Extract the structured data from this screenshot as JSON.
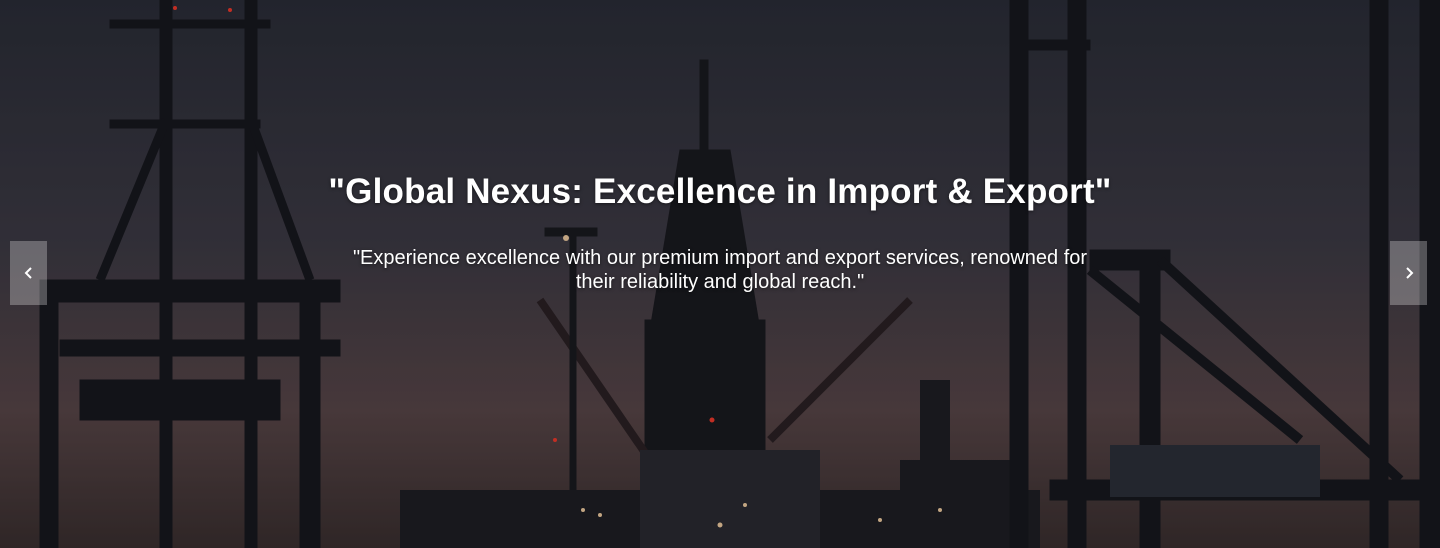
{
  "carousel": {
    "title": "\"Global Nexus: Excellence in Import & Export\"",
    "subtitle": "\"Experience excellence with our premium import and export services, renowned for their reliability and global reach.\"",
    "controls": {
      "prev_icon": "chevron-left-icon",
      "next_icon": "chevron-right-icon"
    },
    "background_image": "harbor-cranes-at-dusk"
  },
  "colors": {
    "caption_text": "#ffffff",
    "nav_button_bg": "rgba(255,255,255,0.28)"
  }
}
